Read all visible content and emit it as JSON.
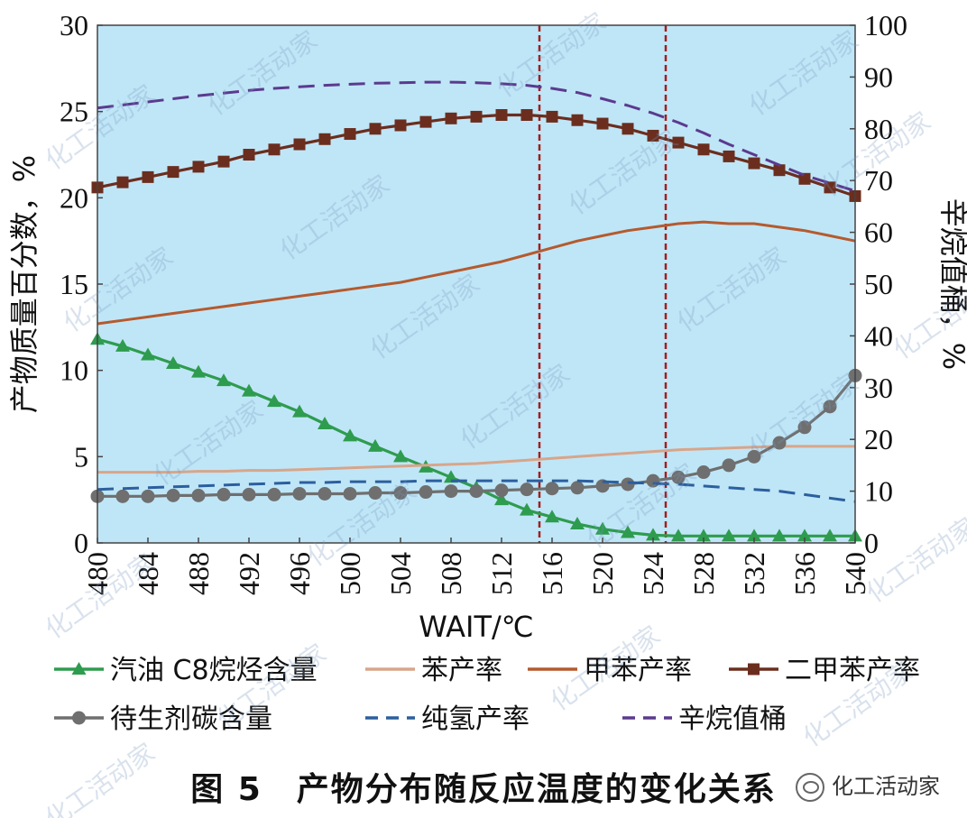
{
  "chart_data": {
    "type": "line",
    "x": [
      480,
      482,
      484,
      486,
      488,
      490,
      492,
      494,
      496,
      498,
      500,
      502,
      504,
      506,
      508,
      510,
      512,
      514,
      516,
      518,
      520,
      522,
      524,
      526,
      528,
      530,
      532,
      534,
      536,
      538,
      540
    ],
    "xticks": [
      "480",
      "484",
      "488",
      "492",
      "496",
      "500",
      "504",
      "508",
      "512",
      "516",
      "520",
      "524",
      "528",
      "532",
      "536",
      "540"
    ],
    "xlabel": "WAIT/℃",
    "ylabel_left": "产物质量百分数，%",
    "ylabel_right": "辛烷值桶，%",
    "ylim_left": [
      0,
      30
    ],
    "ylim_right": [
      0,
      100
    ],
    "yticks_left": [
      "0",
      "5",
      "10",
      "15",
      "20",
      "25",
      "30"
    ],
    "yticks_right": [
      "0",
      "10",
      "20",
      "30",
      "40",
      "50",
      "60",
      "70",
      "80",
      "90",
      "100"
    ],
    "vlines": [
      515,
      525
    ],
    "series": [
      {
        "name": "汽油 C8烷烃含量",
        "axis": "left",
        "color": "#2e9c4e",
        "style": "solid",
        "marker": "triangle",
        "values": [
          11.8,
          11.4,
          10.9,
          10.4,
          9.9,
          9.4,
          8.8,
          8.2,
          7.6,
          6.9,
          6.2,
          5.6,
          5.0,
          4.4,
          3.8,
          3.2,
          2.5,
          1.9,
          1.5,
          1.1,
          0.8,
          0.6,
          0.45,
          0.4,
          0.4,
          0.4,
          0.4,
          0.4,
          0.4,
          0.4,
          0.4
        ]
      },
      {
        "name": "苯产率",
        "axis": "left",
        "color": "#d8a58a",
        "style": "solid",
        "marker": "none",
        "values": [
          4.1,
          4.1,
          4.1,
          4.1,
          4.15,
          4.15,
          4.2,
          4.2,
          4.25,
          4.3,
          4.35,
          4.4,
          4.45,
          4.5,
          4.55,
          4.6,
          4.7,
          4.8,
          4.9,
          5.0,
          5.1,
          5.2,
          5.3,
          5.4,
          5.45,
          5.5,
          5.55,
          5.6,
          5.6,
          5.6,
          5.6
        ]
      },
      {
        "name": "甲苯产率",
        "axis": "left",
        "color": "#b55a2e",
        "style": "solid",
        "marker": "none",
        "values": [
          12.7,
          12.9,
          13.1,
          13.3,
          13.5,
          13.7,
          13.9,
          14.1,
          14.3,
          14.5,
          14.7,
          14.9,
          15.1,
          15.4,
          15.7,
          16.0,
          16.3,
          16.7,
          17.1,
          17.5,
          17.8,
          18.1,
          18.3,
          18.5,
          18.6,
          18.5,
          18.5,
          18.3,
          18.1,
          17.8,
          17.5
        ]
      },
      {
        "name": "二甲苯产率",
        "axis": "left",
        "color": "#6b2e1e",
        "style": "solid",
        "marker": "square",
        "values": [
          20.6,
          20.9,
          21.2,
          21.5,
          21.8,
          22.1,
          22.5,
          22.8,
          23.1,
          23.4,
          23.7,
          24.0,
          24.2,
          24.4,
          24.6,
          24.7,
          24.8,
          24.8,
          24.7,
          24.5,
          24.3,
          24.0,
          23.6,
          23.2,
          22.8,
          22.4,
          22.0,
          21.6,
          21.1,
          20.6,
          20.1
        ]
      },
      {
        "name": "待生剂碳含量",
        "axis": "left",
        "color": "#6f6f6f",
        "style": "solid",
        "marker": "circle",
        "values": [
          2.7,
          2.7,
          2.7,
          2.75,
          2.75,
          2.8,
          2.8,
          2.8,
          2.85,
          2.85,
          2.85,
          2.9,
          2.9,
          2.95,
          3.0,
          3.0,
          3.05,
          3.1,
          3.15,
          3.2,
          3.3,
          3.4,
          3.6,
          3.8,
          4.1,
          4.5,
          5.0,
          5.8,
          6.7,
          7.9,
          9.7
        ]
      },
      {
        "name": "纯氢产率",
        "axis": "left",
        "color": "#2c5f9e",
        "style": "dashed",
        "marker": "none",
        "values": [
          3.1,
          3.15,
          3.2,
          3.25,
          3.3,
          3.35,
          3.4,
          3.45,
          3.5,
          3.5,
          3.55,
          3.55,
          3.55,
          3.6,
          3.6,
          3.6,
          3.6,
          3.6,
          3.6,
          3.6,
          3.55,
          3.5,
          3.45,
          3.4,
          3.3,
          3.2,
          3.1,
          3.0,
          2.8,
          2.6,
          2.4
        ]
      },
      {
        "name": "辛烷值桶",
        "axis": "right",
        "color": "#5b3a8e",
        "style": "dashed",
        "marker": "none",
        "values": [
          84.0,
          84.6,
          85.2,
          85.8,
          86.4,
          86.9,
          87.4,
          87.8,
          88.1,
          88.4,
          88.6,
          88.8,
          88.9,
          89.0,
          89.0,
          88.9,
          88.7,
          88.4,
          87.8,
          87.0,
          85.8,
          84.5,
          83.0,
          81.2,
          79.2,
          77.0,
          75.0,
          73.0,
          71.0,
          69.5,
          68.0
        ]
      }
    ],
    "legend": [
      {
        "label": "汽油 C8烷烃含量",
        "series": 0
      },
      {
        "label": "苯产率",
        "series": 1
      },
      {
        "label": "甲苯产率",
        "series": 2
      },
      {
        "label": "二甲苯产率",
        "series": 3
      },
      {
        "label": "待生剂碳含量",
        "series": 4
      },
      {
        "label": "纯氢产率",
        "series": 5
      },
      {
        "label": "辛烷值桶",
        "series": 6
      }
    ],
    "legend_placement": "bottom",
    "grid": false,
    "background": "#bfe6f7"
  },
  "caption": "图 5　产物分布随反应温度的变化关系",
  "brand": "化工活动家",
  "watermark": "化工活动家"
}
